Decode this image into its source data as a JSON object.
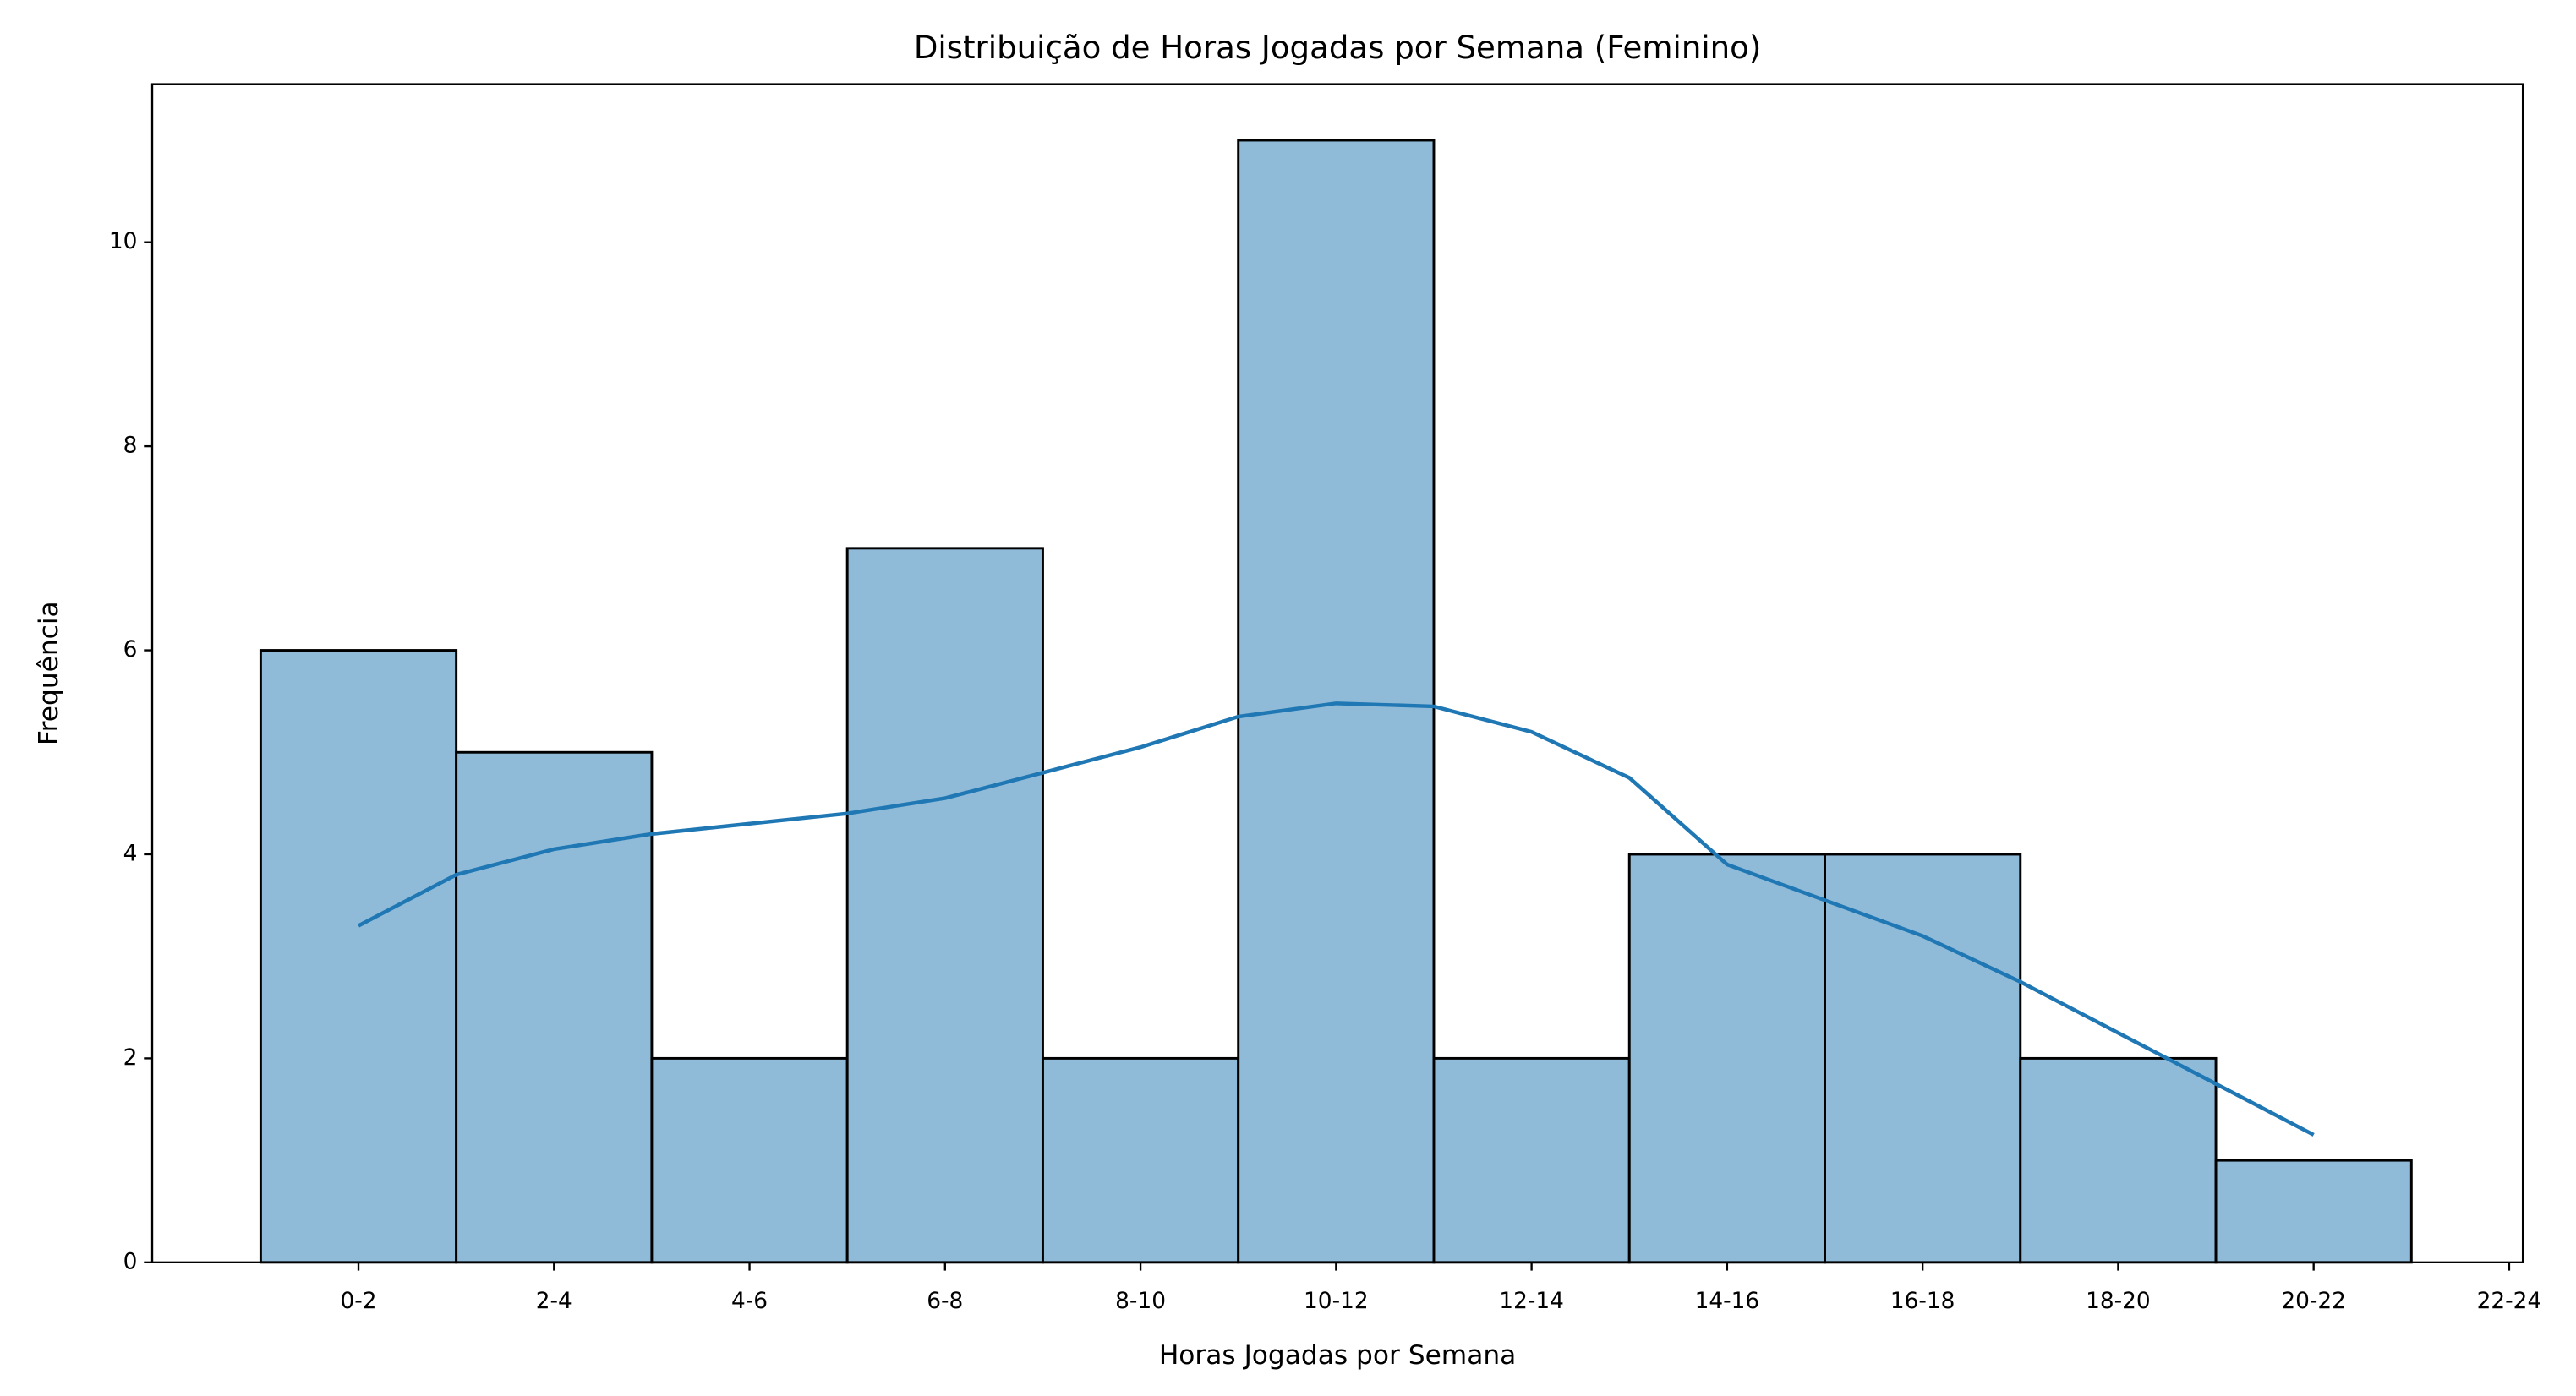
{
  "chart_data": {
    "type": "histogram",
    "title": "Distribuição de Horas Jogadas por Semana (Feminino)",
    "x_label": "Horas Jogadas por Semana",
    "y_label": "Frequência",
    "bins": [
      -0.5,
      0.5,
      1.5,
      2.5,
      3.5,
      4.5,
      5.5,
      6.5,
      7.5,
      8.5,
      9.5,
      10.5
    ],
    "values": [
      6,
      5,
      2,
      7,
      2,
      11,
      2,
      4,
      4,
      2,
      1
    ],
    "color": "#8fbbd9",
    "edge_color": "#000000",
    "kde": {
      "color": "#1f77b4",
      "x": [
        0,
        0.5,
        1,
        1.5,
        2,
        2.5,
        3,
        3.5,
        4,
        4.5,
        5,
        5.5,
        6,
        6.5,
        7,
        7.5,
        8,
        8.5,
        9,
        9.5,
        10
      ],
      "values": [
        3.3,
        3.8,
        4.05,
        4.2,
        4.3,
        4.4,
        4.55,
        4.8,
        5.05,
        5.35,
        5.48,
        5.45,
        5.2,
        4.75,
        3.9,
        3.55,
        3.2,
        2.75,
        2.25,
        1.75,
        1.25
      ]
    },
    "xlim": [
      -1.055,
      11.07
    ],
    "ylim": [
      0,
      11.55
    ],
    "xticks": [
      {
        "value": 0,
        "label": "0-2"
      },
      {
        "value": 1,
        "label": "2-4"
      },
      {
        "value": 2,
        "label": "4-6"
      },
      {
        "value": 3,
        "label": "6-8"
      },
      {
        "value": 4,
        "label": "8-10"
      },
      {
        "value": 5,
        "label": "10-12"
      },
      {
        "value": 6,
        "label": "12-14"
      },
      {
        "value": 7,
        "label": "14-16"
      },
      {
        "value": 8,
        "label": "16-18"
      },
      {
        "value": 9,
        "label": "18-20"
      },
      {
        "value": 10,
        "label": "20-22"
      },
      {
        "value": 11,
        "label": "22-24"
      }
    ],
    "yticks": [
      0,
      2,
      4,
      6,
      8,
      10
    ]
  }
}
